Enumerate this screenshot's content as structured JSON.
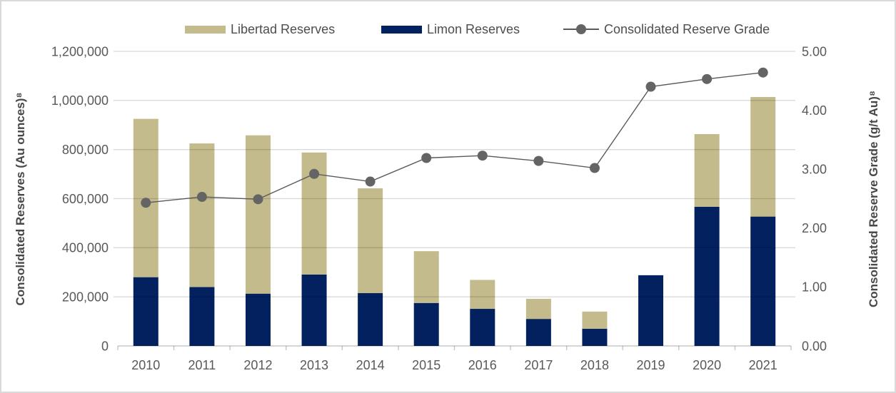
{
  "legend": {
    "libertad_label": "Libertad Reserves",
    "limon_label": "Limon Reserves",
    "grade_label": "Consolidated Reserve Grade"
  },
  "left_axis": {
    "title": "Consolidated Reserves (Au ounces)⁸",
    "tick_labels": [
      "0",
      "200,000",
      "400,000",
      "600,000",
      "800,000",
      "1,000,000",
      "1,200,000"
    ]
  },
  "right_axis": {
    "title": "Consolidated Reserve Grade (g/t Au)⁸",
    "tick_labels": [
      "0.00",
      "1.00",
      "2.00",
      "3.00",
      "4.00",
      "5.00"
    ]
  },
  "colors": {
    "libertad_bar": "#C4BB8C",
    "limon_bar": "#02215E",
    "grade_line": "#595959",
    "grade_marker": "#646464",
    "gridline": "#000000",
    "gridline_opacity": "0.15",
    "axis_line": "#000000",
    "axis_line_opacity": "0.22",
    "tick_text": "#595959",
    "frame_border": "#D9D9D9"
  },
  "chart_data": {
    "type": "combo-stacked-bar-line",
    "categories": [
      "2010",
      "2011",
      "2012",
      "2013",
      "2014",
      "2015",
      "2016",
      "2017",
      "2018",
      "2019",
      "2020",
      "2021"
    ],
    "series": [
      {
        "name": "Limon Reserves",
        "type": "bar",
        "axis": "left",
        "values": [
          280000,
          240000,
          213000,
          291000,
          215000,
          175000,
          151000,
          110000,
          70000,
          288000,
          567000,
          527000
        ]
      },
      {
        "name": "Libertad Reserves",
        "type": "bar",
        "axis": "left",
        "values": [
          645000,
          585000,
          645000,
          497000,
          427000,
          211000,
          118000,
          82000,
          70000,
          0,
          296000,
          487000
        ]
      },
      {
        "name": "Consolidated Reserve Grade",
        "type": "line",
        "axis": "right",
        "values": [
          2.43,
          2.53,
          2.49,
          2.92,
          2.79,
          3.19,
          3.23,
          3.14,
          3.02,
          4.4,
          4.53,
          4.64
        ]
      }
    ],
    "left_ylim": [
      0,
      1200000
    ],
    "left_tick_step": 200000,
    "right_ylim": [
      0,
      5
    ],
    "right_tick_step": 1,
    "grid": true,
    "legend_position": "top"
  }
}
